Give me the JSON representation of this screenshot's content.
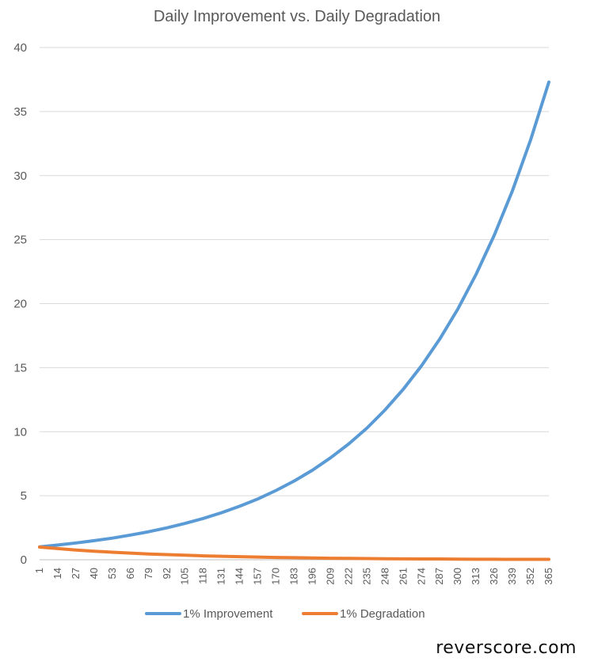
{
  "chart_data": {
    "type": "line",
    "title": "Daily Improvement vs. Daily Degradation",
    "xlabel": "",
    "ylabel": "",
    "x_range": [
      1,
      365
    ],
    "ylim": [
      0,
      40
    ],
    "y_ticks": [
      0,
      5,
      10,
      15,
      20,
      25,
      30,
      35,
      40
    ],
    "x_ticks": [
      1,
      14,
      27,
      40,
      53,
      66,
      79,
      92,
      105,
      118,
      131,
      144,
      157,
      170,
      183,
      196,
      209,
      222,
      235,
      248,
      261,
      274,
      287,
      300,
      313,
      326,
      339,
      352,
      365
    ],
    "grid": true,
    "legend_position": "bottom",
    "series": [
      {
        "name": "1% Improvement",
        "color": "#5b9bd5",
        "x": [
          1,
          14,
          27,
          40,
          53,
          66,
          79,
          92,
          105,
          118,
          131,
          144,
          157,
          170,
          183,
          196,
          209,
          222,
          235,
          248,
          261,
          274,
          287,
          300,
          313,
          326,
          339,
          352,
          365
        ],
        "values": [
          1.01,
          1.15,
          1.31,
          1.49,
          1.69,
          1.93,
          2.19,
          2.49,
          2.84,
          3.23,
          3.67,
          4.18,
          4.75,
          5.41,
          6.15,
          6.99,
          7.96,
          9.05,
          10.29,
          11.71,
          13.32,
          15.15,
          17.23,
          19.59,
          22.29,
          25.35,
          28.83,
          32.79,
          37.3
        ]
      },
      {
        "name": "1% Degradation",
        "color": "#ed7d31",
        "x": [
          1,
          14,
          27,
          40,
          53,
          66,
          79,
          92,
          105,
          118,
          131,
          144,
          157,
          170,
          183,
          196,
          209,
          222,
          235,
          248,
          261,
          274,
          287,
          300,
          313,
          326,
          339,
          352,
          365
        ],
        "values": [
          0.99,
          0.87,
          0.76,
          0.67,
          0.59,
          0.52,
          0.45,
          0.4,
          0.35,
          0.3,
          0.27,
          0.24,
          0.21,
          0.18,
          0.16,
          0.14,
          0.12,
          0.11,
          0.09,
          0.08,
          0.07,
          0.06,
          0.06,
          0.05,
          0.04,
          0.04,
          0.03,
          0.03,
          0.03
        ]
      }
    ]
  },
  "watermark": "reverscore.com"
}
